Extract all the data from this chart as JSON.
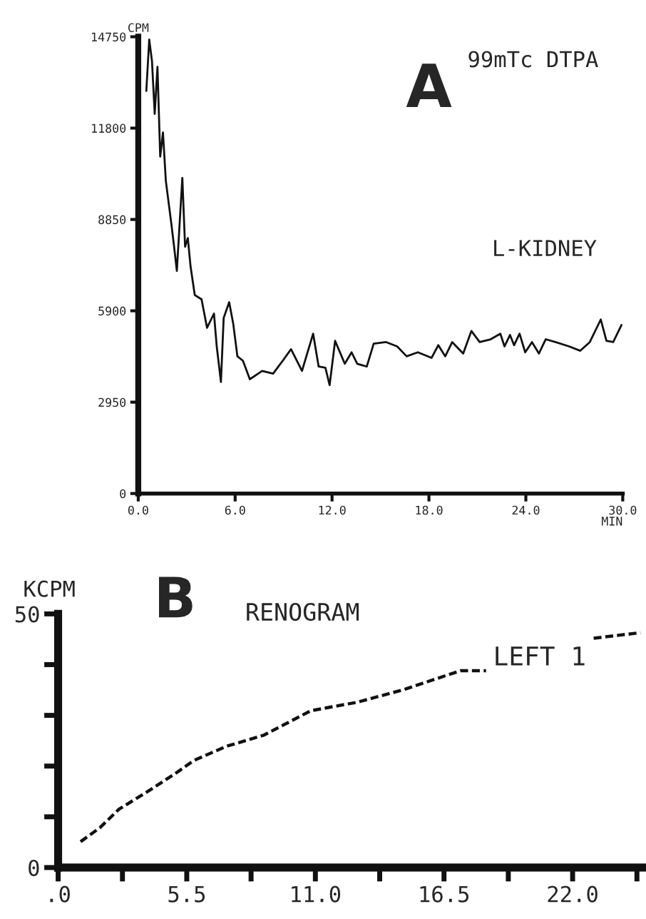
{
  "chart_data": [
    {
      "type": "line",
      "title": "A",
      "subtitle": "99mTc DTPA",
      "ylabel": "CPM",
      "xlabel": "MIN",
      "xlim": [
        0,
        30
      ],
      "ylim": [
        0,
        14750
      ],
      "xticks": [
        {
          "value": 0,
          "label": "0.0"
        },
        {
          "value": 6,
          "label": "6.0"
        },
        {
          "value": 12,
          "label": "12.0"
        },
        {
          "value": 18,
          "label": "18.0"
        },
        {
          "value": 24,
          "label": "24.0"
        },
        {
          "value": 30,
          "label": "30.0"
        }
      ],
      "yticks": [
        0,
        2950,
        5900,
        8850,
        11800,
        14750
      ],
      "grid": false,
      "legend": false,
      "marker": "none",
      "line_style": "solid",
      "series": [
        {
          "name": "L-KIDNEY",
          "color": "#111111",
          "x": [
            0.5,
            0.68,
            0.85,
            1.02,
            1.19,
            1.36,
            1.53,
            1.71,
            2.05,
            2.22,
            2.39,
            2.73,
            2.9,
            3.07,
            3.24,
            3.5,
            3.92,
            4.26,
            4.69,
            4.86,
            5.12,
            5.29,
            5.63,
            5.88,
            6.14,
            6.48,
            6.91,
            7.67,
            8.35,
            8.95,
            9.46,
            10.14,
            10.83,
            11.17,
            11.59,
            11.85,
            12.19,
            12.79,
            13.21,
            13.56,
            14.15,
            14.58,
            15.35,
            16.03,
            16.62,
            17.31,
            18.16,
            18.58,
            19.01,
            19.44,
            20.12,
            20.63,
            21.14,
            21.82,
            22.42,
            22.68,
            23.02,
            23.27,
            23.61,
            23.96,
            24.38,
            24.81,
            25.23,
            25.83,
            26.68,
            27.37,
            27.96,
            28.64,
            28.99,
            29.41,
            29.92
          ],
          "values": [
            13000,
            14660,
            13970,
            12260,
            13780,
            10880,
            11660,
            10090,
            8710,
            7970,
            7190,
            10190,
            7970,
            8250,
            7330,
            6410,
            6270,
            5350,
            5810,
            4750,
            3600,
            5670,
            6180,
            5490,
            4430,
            4290,
            3690,
            3960,
            3870,
            4290,
            4660,
            3960,
            5160,
            4100,
            4060,
            3500,
            4930,
            4190,
            4560,
            4190,
            4100,
            4840,
            4890,
            4750,
            4430,
            4560,
            4380,
            4790,
            4430,
            4890,
            4520,
            5250,
            4890,
            4980,
            5160,
            4750,
            5120,
            4790,
            5160,
            4560,
            4890,
            4520,
            4980,
            4890,
            4750,
            4610,
            4890,
            5620,
            4930,
            4890,
            5440
          ]
        }
      ]
    },
    {
      "type": "line",
      "title": "B",
      "subtitle": "RENOGRAM",
      "ylabel": "KCPM",
      "xlim": [
        0,
        25
      ],
      "ylim": [
        0,
        50
      ],
      "xticks": [
        {
          "value": 0,
          "label": ".0"
        },
        {
          "value": 2.75,
          "label": null
        },
        {
          "value": 5.5,
          "label": "5.5"
        },
        {
          "value": 8.25,
          "label": null
        },
        {
          "value": 11,
          "label": "11.0"
        },
        {
          "value": 13.75,
          "label": null
        },
        {
          "value": 16.5,
          "label": "16.5"
        },
        {
          "value": 19.25,
          "label": null
        },
        {
          "value": 22,
          "label": "22.0"
        },
        {
          "value": 24.75,
          "label": null
        }
      ],
      "yticks": [
        0,
        {
          "value": 10,
          "label": null
        },
        {
          "value": 20,
          "label": null
        },
        {
          "value": 30,
          "label": null
        },
        {
          "value": 40,
          "label": null
        },
        50
      ],
      "grid": false,
      "legend": false,
      "marker": "none",
      "line_style": "dashed",
      "series": [
        {
          "name": "LEFT 1",
          "color": "#111111",
          "x": [
            0.96,
            1.8,
            2.6,
            3.8,
            5.0,
            5.8,
            7.2,
            8.8,
            10.8,
            12.8,
            14.8,
            17.2,
            18.3,
            20.5,
            22.9,
            24.9
          ],
          "values": [
            5.1,
            7.9,
            11.5,
            14.9,
            18.5,
            21.1,
            23.9,
            26.1,
            30.9,
            32.6,
            35.1,
            38.8,
            38.8,
            null,
            45.2,
            46.3
          ]
        }
      ]
    }
  ]
}
